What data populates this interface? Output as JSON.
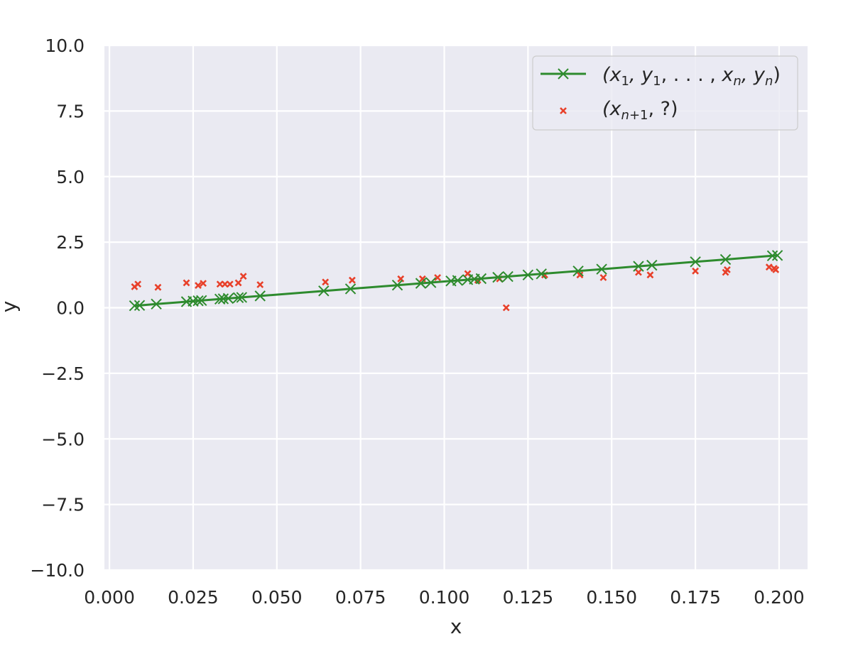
{
  "chart_data": {
    "type": "scatter",
    "xlabel": "x",
    "ylabel": "y",
    "xlim": [
      -0.0015,
      0.2085
    ],
    "ylim": [
      -10.0,
      10.0
    ],
    "x_ticks": [
      "0.000",
      "0.025",
      "0.050",
      "0.075",
      "0.100",
      "0.125",
      "0.150",
      "0.175",
      "0.200"
    ],
    "y_ticks": [
      "10.0",
      "7.5",
      "5.0",
      "2.5",
      "0.0",
      "−2.5",
      "−5.0",
      "−7.5",
      "−10.0"
    ],
    "grid": true,
    "legend_position": "top-right",
    "background_color": "#eaeaf2",
    "series": [
      {
        "name": "(x1, y1, . . . , xn, yn)",
        "marker": "x",
        "line": true,
        "color": "#2e8b2e",
        "points": [
          [
            0.0075,
            0.075
          ],
          [
            0.009,
            0.09
          ],
          [
            0.014,
            0.14
          ],
          [
            0.023,
            0.23
          ],
          [
            0.025,
            0.25
          ],
          [
            0.0265,
            0.265
          ],
          [
            0.0275,
            0.275
          ],
          [
            0.033,
            0.33
          ],
          [
            0.034,
            0.34
          ],
          [
            0.0355,
            0.355
          ],
          [
            0.0385,
            0.385
          ],
          [
            0.0395,
            0.395
          ],
          [
            0.045,
            0.45
          ],
          [
            0.064,
            0.64
          ],
          [
            0.072,
            0.72
          ],
          [
            0.086,
            0.86
          ],
          [
            0.093,
            0.93
          ],
          [
            0.096,
            0.96
          ],
          [
            0.102,
            1.02
          ],
          [
            0.104,
            1.04
          ],
          [
            0.107,
            1.07
          ],
          [
            0.109,
            1.09
          ],
          [
            0.111,
            1.11
          ],
          [
            0.116,
            1.16
          ],
          [
            0.119,
            1.19
          ],
          [
            0.125,
            1.25
          ],
          [
            0.129,
            1.29
          ],
          [
            0.14,
            1.4
          ],
          [
            0.147,
            1.47
          ],
          [
            0.158,
            1.58
          ],
          [
            0.162,
            1.62
          ],
          [
            0.175,
            1.75
          ],
          [
            0.184,
            1.84
          ],
          [
            0.198,
            1.98
          ],
          [
            0.1995,
            1.995
          ]
        ]
      },
      {
        "name": "(xn+1, ?)",
        "marker": "x-small",
        "line": false,
        "color": "#e8402a",
        "points": [
          [
            0.0075,
            0.8
          ],
          [
            0.0085,
            0.9
          ],
          [
            0.0145,
            0.78
          ],
          [
            0.023,
            0.95
          ],
          [
            0.0265,
            0.85
          ],
          [
            0.028,
            0.93
          ],
          [
            0.033,
            0.9
          ],
          [
            0.0345,
            0.9
          ],
          [
            0.036,
            0.9
          ],
          [
            0.0385,
            0.95
          ],
          [
            0.04,
            1.2
          ],
          [
            0.045,
            0.88
          ],
          [
            0.0645,
            0.98
          ],
          [
            0.0725,
            1.05
          ],
          [
            0.087,
            1.1
          ],
          [
            0.0935,
            1.1
          ],
          [
            0.098,
            1.15
          ],
          [
            0.107,
            1.3
          ],
          [
            0.11,
            1.05
          ],
          [
            0.1165,
            1.1
          ],
          [
            0.1185,
            0.0
          ],
          [
            0.13,
            1.25
          ],
          [
            0.1405,
            1.25
          ],
          [
            0.1475,
            1.15
          ],
          [
            0.158,
            1.35
          ],
          [
            0.1615,
            1.25
          ],
          [
            0.175,
            1.4
          ],
          [
            0.184,
            1.35
          ],
          [
            0.1845,
            1.45
          ],
          [
            0.197,
            1.55
          ],
          [
            0.1985,
            1.5
          ],
          [
            0.199,
            1.45
          ]
        ]
      }
    ]
  }
}
